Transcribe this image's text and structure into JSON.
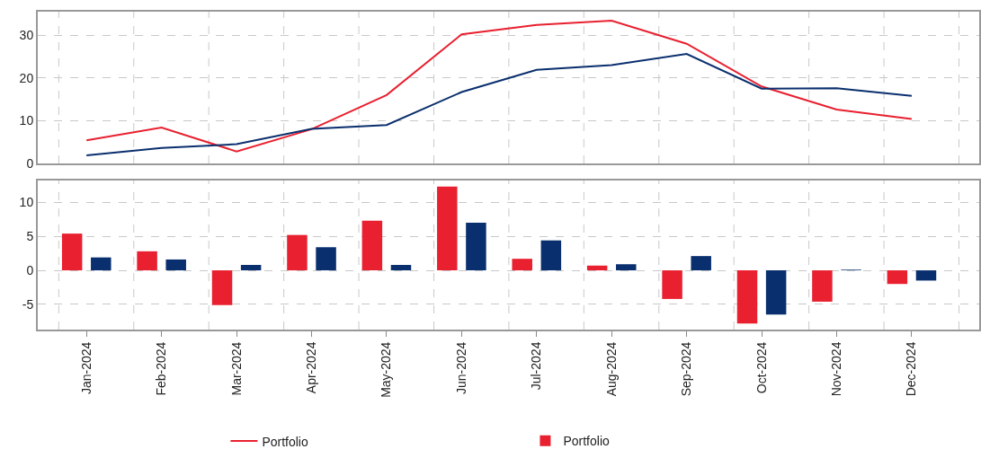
{
  "chart_data": [
    {
      "type": "line",
      "categories": [
        null,
        null,
        null,
        null,
        null,
        null,
        null,
        null,
        null,
        null,
        null,
        null
      ],
      "series": [
        {
          "name": "Portfolio",
          "color": "#e8202f",
          "values": [
            5.4,
            8.4,
            2.8,
            8.0,
            16.0,
            30.2,
            32.4,
            33.4,
            28.0,
            18.0,
            12.6,
            10.4
          ]
        },
        {
          "color": "#0a2f6e",
          "values": [
            1.9,
            3.6,
            4.5,
            8.1,
            9.0,
            16.7,
            21.9,
            23.0,
            25.6,
            17.5,
            17.6,
            15.8
          ]
        }
      ],
      "ylim": [
        0,
        35.5
      ],
      "yticks": [
        0,
        10,
        20,
        30
      ],
      "grid": true,
      "legend": "bottom",
      "tick_labels": "y"
    },
    {
      "type": "bar",
      "categories": [
        "Jan-2024",
        "Feb-2024",
        "Mar-2024",
        "Apr-2024",
        "May-2024",
        "Jun-2024",
        "Jul-2024",
        "Aug-2024",
        "Sep-2024",
        "Oct-2024",
        "Nov-2024",
        "Dec-2024"
      ],
      "series": [
        {
          "name": "Portfolio",
          "color": "#e8202f",
          "values": [
            5.4,
            2.8,
            -5.1,
            5.2,
            7.3,
            12.3,
            1.7,
            0.7,
            -4.2,
            -7.8,
            -4.6,
            -2.0
          ]
        },
        {
          "color": "#0a2f6e",
          "values": [
            1.9,
            1.6,
            0.8,
            3.4,
            0.8,
            7.0,
            4.4,
            0.9,
            2.1,
            -6.5,
            0.1,
            -1.5
          ]
        }
      ],
      "ylim": [
        -8.7,
        13.2
      ],
      "yticks": [
        -5,
        0,
        5,
        10
      ],
      "grid": true,
      "legend": "bottom"
    }
  ]
}
